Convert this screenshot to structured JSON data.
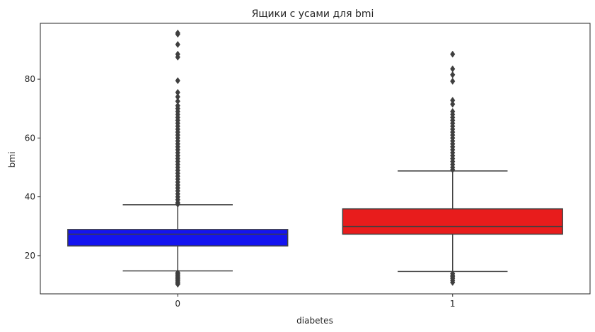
{
  "chart_data": {
    "type": "box",
    "title": "Ящики с усами для bmi",
    "xlabel": "diabetes",
    "ylabel": "bmi",
    "ylim": [
      7,
      99
    ],
    "yticks": [
      20,
      40,
      60,
      80
    ],
    "ytick_labels": [
      "20",
      "40",
      "60",
      "80"
    ],
    "grid": false,
    "categories": [
      "0",
      "1"
    ],
    "boxes": [
      {
        "category": "0",
        "color": "#1414f0",
        "q1": 23.3,
        "median": 27.3,
        "q3": 28.9,
        "whisker_low": 14.8,
        "whisker_high": 37.3,
        "outliers_high": [
          37.5,
          38,
          39,
          40,
          41,
          42,
          43,
          44,
          45,
          46,
          47,
          48,
          49,
          50,
          51,
          52,
          53,
          54,
          55,
          56,
          57,
          58,
          59,
          60,
          61,
          62,
          63,
          64,
          65,
          66,
          67,
          68,
          69,
          70,
          71,
          72.5,
          74,
          75.5,
          79.5,
          87.5,
          88.5,
          91.8,
          95.3,
          95.7
        ],
        "outliers_low": [
          14.2,
          13.8,
          13.4,
          13,
          12.6,
          12.2,
          11.8,
          11.4,
          11,
          10.6,
          10.3
        ]
      },
      {
        "category": "1",
        "color": "#e81c1c",
        "q1": 27.3,
        "median": 29.9,
        "q3": 35.9,
        "whisker_low": 14.6,
        "whisker_high": 48.8,
        "outliers_high": [
          49.2,
          50,
          51,
          52,
          53,
          54,
          55,
          56,
          57,
          58,
          59,
          60,
          61,
          62,
          63,
          64,
          65,
          66,
          67,
          68,
          69,
          71.5,
          72.8,
          79.3,
          81.5,
          83.5,
          88.5
        ],
        "outliers_low": [
          13.9,
          13.3,
          12.8,
          12.2,
          11.5,
          10.9
        ]
      }
    ]
  }
}
